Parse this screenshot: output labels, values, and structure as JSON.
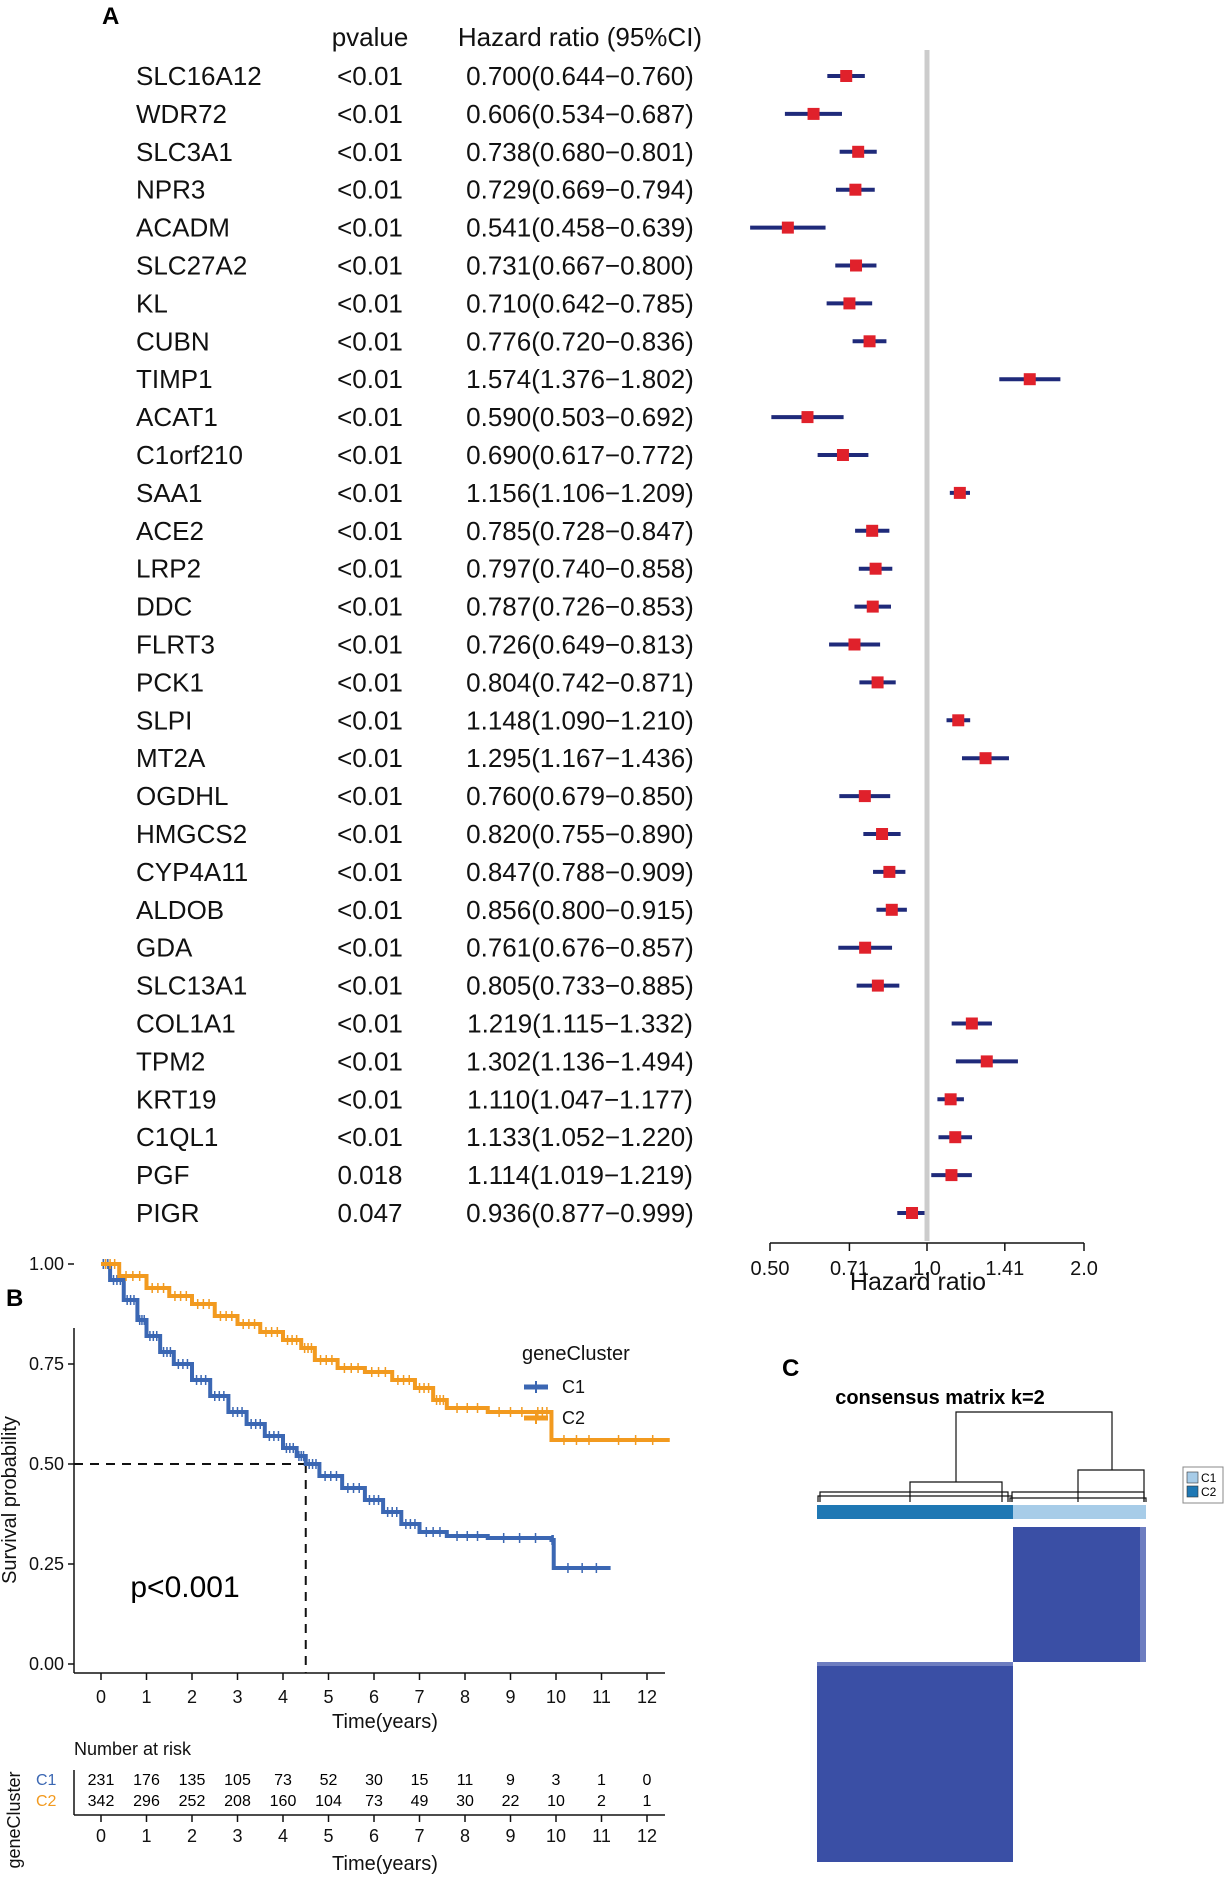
{
  "panels": {
    "a": "A",
    "b": "B",
    "c": "C"
  },
  "colors": {
    "ci_line": "#1f2a7a",
    "point": "#e0212b",
    "ref_line": "#cccccc",
    "c1": "#3b67b3",
    "c2": "#f29a1f",
    "c1_light": "#a7cce8",
    "c2_dark": "#1f78b4",
    "matrix": "#3a4fa5"
  },
  "chart_data": [
    {
      "type": "forest",
      "panel": "A",
      "col_headers": {
        "pvalue": "pvalue",
        "hr": "Hazard ratio (95%CI)"
      },
      "xlabel": "Hazard ratio",
      "xscale": "log",
      "xticks": [
        "0.50",
        "0.71",
        "1.0",
        "1.41",
        "2.0"
      ],
      "xlim": [
        0.5,
        2.0
      ],
      "ref_line": 1.0,
      "rows": [
        {
          "gene": "SLC16A12",
          "p": "<0.01",
          "hr": 0.7,
          "lo": 0.644,
          "hi": 0.76,
          "text": "0.700(0.644−0.760)"
        },
        {
          "gene": "WDR72",
          "p": "<0.01",
          "hr": 0.606,
          "lo": 0.534,
          "hi": 0.687,
          "text": "0.606(0.534−0.687)"
        },
        {
          "gene": "SLC3A1",
          "p": "<0.01",
          "hr": 0.738,
          "lo": 0.68,
          "hi": 0.801,
          "text": "0.738(0.680−0.801)"
        },
        {
          "gene": "NPR3",
          "p": "<0.01",
          "hr": 0.729,
          "lo": 0.669,
          "hi": 0.794,
          "text": "0.729(0.669−0.794)"
        },
        {
          "gene": "ACADM",
          "p": "<0.01",
          "hr": 0.541,
          "lo": 0.458,
          "hi": 0.639,
          "text": "0.541(0.458−0.639)"
        },
        {
          "gene": "SLC27A2",
          "p": "<0.01",
          "hr": 0.731,
          "lo": 0.667,
          "hi": 0.8,
          "text": "0.731(0.667−0.800)"
        },
        {
          "gene": "KL",
          "p": "<0.01",
          "hr": 0.71,
          "lo": 0.642,
          "hi": 0.785,
          "text": "0.710(0.642−0.785)"
        },
        {
          "gene": "CUBN",
          "p": "<0.01",
          "hr": 0.776,
          "lo": 0.72,
          "hi": 0.836,
          "text": "0.776(0.720−0.836)"
        },
        {
          "gene": "TIMP1",
          "p": "<0.01",
          "hr": 1.574,
          "lo": 1.376,
          "hi": 1.802,
          "text": "1.574(1.376−1.802)"
        },
        {
          "gene": "ACAT1",
          "p": "<0.01",
          "hr": 0.59,
          "lo": 0.503,
          "hi": 0.692,
          "text": "0.590(0.503−0.692)"
        },
        {
          "gene": "C1orf210",
          "p": "<0.01",
          "hr": 0.69,
          "lo": 0.617,
          "hi": 0.772,
          "text": "0.690(0.617−0.772)"
        },
        {
          "gene": "SAA1",
          "p": "<0.01",
          "hr": 1.156,
          "lo": 1.106,
          "hi": 1.209,
          "text": "1.156(1.106−1.209)"
        },
        {
          "gene": "ACE2",
          "p": "<0.01",
          "hr": 0.785,
          "lo": 0.728,
          "hi": 0.847,
          "text": "0.785(0.728−0.847)"
        },
        {
          "gene": "LRP2",
          "p": "<0.01",
          "hr": 0.797,
          "lo": 0.74,
          "hi": 0.858,
          "text": "0.797(0.740−0.858)"
        },
        {
          "gene": "DDC",
          "p": "<0.01",
          "hr": 0.787,
          "lo": 0.726,
          "hi": 0.853,
          "text": "0.787(0.726−0.853)"
        },
        {
          "gene": "FLRT3",
          "p": "<0.01",
          "hr": 0.726,
          "lo": 0.649,
          "hi": 0.813,
          "text": "0.726(0.649−0.813)"
        },
        {
          "gene": "PCK1",
          "p": "<0.01",
          "hr": 0.804,
          "lo": 0.742,
          "hi": 0.871,
          "text": "0.804(0.742−0.871)"
        },
        {
          "gene": "SLPI",
          "p": "<0.01",
          "hr": 1.148,
          "lo": 1.09,
          "hi": 1.21,
          "text": "1.148(1.090−1.210)"
        },
        {
          "gene": "MT2A",
          "p": "<0.01",
          "hr": 1.295,
          "lo": 1.167,
          "hi": 1.436,
          "text": "1.295(1.167−1.436)"
        },
        {
          "gene": "OGDHL",
          "p": "<0.01",
          "hr": 0.76,
          "lo": 0.679,
          "hi": 0.85,
          "text": "0.760(0.679−0.850)"
        },
        {
          "gene": "HMGCS2",
          "p": "<0.01",
          "hr": 0.82,
          "lo": 0.755,
          "hi": 0.89,
          "text": "0.820(0.755−0.890)"
        },
        {
          "gene": "CYP4A11",
          "p": "<0.01",
          "hr": 0.847,
          "lo": 0.788,
          "hi": 0.909,
          "text": "0.847(0.788−0.909)"
        },
        {
          "gene": "ALDOB",
          "p": "<0.01",
          "hr": 0.856,
          "lo": 0.8,
          "hi": 0.915,
          "text": "0.856(0.800−0.915)"
        },
        {
          "gene": "GDA",
          "p": "<0.01",
          "hr": 0.761,
          "lo": 0.676,
          "hi": 0.857,
          "text": "0.761(0.676−0.857)"
        },
        {
          "gene": "SLC13A1",
          "p": "<0.01",
          "hr": 0.805,
          "lo": 0.733,
          "hi": 0.885,
          "text": "0.805(0.733−0.885)"
        },
        {
          "gene": "COL1A1",
          "p": "<0.01",
          "hr": 1.219,
          "lo": 1.115,
          "hi": 1.332,
          "text": "1.219(1.115−1.332)"
        },
        {
          "gene": "TPM2",
          "p": "<0.01",
          "hr": 1.302,
          "lo": 1.136,
          "hi": 1.494,
          "text": "1.302(1.136−1.494)"
        },
        {
          "gene": "KRT19",
          "p": "<0.01",
          "hr": 1.11,
          "lo": 1.047,
          "hi": 1.177,
          "text": "1.110(1.047−1.177)"
        },
        {
          "gene": "C1QL1",
          "p": "<0.01",
          "hr": 1.133,
          "lo": 1.052,
          "hi": 1.22,
          "text": "1.133(1.052−1.220)"
        },
        {
          "gene": "PGF",
          "p": "0.018",
          "hr": 1.114,
          "lo": 1.019,
          "hi": 1.219,
          "text": "1.114(1.019−1.219)"
        },
        {
          "gene": "PIGR",
          "p": "0.047",
          "hr": 0.936,
          "lo": 0.877,
          "hi": 0.999,
          "text": "0.936(0.877−0.999)"
        }
      ]
    },
    {
      "type": "line",
      "subtype": "kaplan-meier",
      "panel": "B",
      "ylabel": "Survival probability",
      "xlabel": "Time(years)",
      "yticks": [
        "1.00",
        "0.75",
        "0.50",
        "0.25",
        "0.00"
      ],
      "ytick_values": [
        1.0,
        0.75,
        0.5,
        0.25,
        0.0
      ],
      "xticks": [
        0,
        1,
        2,
        3,
        4,
        5,
        6,
        7,
        8,
        9,
        10,
        11,
        12
      ],
      "xlim": [
        0,
        12.7
      ],
      "ylim": [
        0,
        1.04
      ],
      "median_line": {
        "time": 4.5,
        "prob": 0.5
      },
      "pvalue_text": "p<0.001",
      "legend_title": "geneCluster",
      "series": [
        {
          "name": "C1",
          "color": "#3b67b3",
          "points": [
            [
              0,
              1.0
            ],
            [
              0.2,
              0.96
            ],
            [
              0.5,
              0.91
            ],
            [
              0.8,
              0.86
            ],
            [
              1,
              0.82
            ],
            [
              1.3,
              0.78
            ],
            [
              1.6,
              0.75
            ],
            [
              2,
              0.71
            ],
            [
              2.4,
              0.67
            ],
            [
              2.8,
              0.63
            ],
            [
              3.2,
              0.6
            ],
            [
              3.6,
              0.57
            ],
            [
              4,
              0.54
            ],
            [
              4.3,
              0.52
            ],
            [
              4.5,
              0.5
            ],
            [
              4.8,
              0.47
            ],
            [
              5.3,
              0.44
            ],
            [
              5.8,
              0.41
            ],
            [
              6.2,
              0.38
            ],
            [
              6.6,
              0.35
            ],
            [
              7,
              0.33
            ],
            [
              7.6,
              0.32
            ],
            [
              8.5,
              0.315
            ],
            [
              9.9,
              0.31
            ],
            [
              9.95,
              0.24
            ],
            [
              11.2,
              0.24
            ]
          ]
        },
        {
          "name": "C2",
          "color": "#f29a1f",
          "points": [
            [
              0,
              1.0
            ],
            [
              0.4,
              0.97
            ],
            [
              1,
              0.94
            ],
            [
              1.5,
              0.92
            ],
            [
              2,
              0.9
            ],
            [
              2.5,
              0.87
            ],
            [
              3,
              0.85
            ],
            [
              3.5,
              0.83
            ],
            [
              4,
              0.81
            ],
            [
              4.4,
              0.79
            ],
            [
              4.7,
              0.76
            ],
            [
              5.2,
              0.74
            ],
            [
              5.8,
              0.73
            ],
            [
              6.4,
              0.71
            ],
            [
              6.9,
              0.69
            ],
            [
              7.3,
              0.66
            ],
            [
              7.6,
              0.64
            ],
            [
              8.5,
              0.63
            ],
            [
              9.5,
              0.63
            ],
            [
              9.9,
              0.56
            ],
            [
              11,
              0.56
            ],
            [
              12.5,
              0.56
            ]
          ]
        }
      ],
      "risk_table": {
        "title": "Number at risk",
        "side_label": "geneCluster",
        "rows": [
          {
            "name": "C1",
            "values": [
              "231",
              "176",
              "135",
              "105",
              "73",
              "52",
              "30",
              "15",
              "11",
              "9",
              "3",
              "1",
              "0"
            ]
          },
          {
            "name": "C2",
            "values": [
              "342",
              "296",
              "252",
              "208",
              "160",
              "104",
              "73",
              "49",
              "30",
              "22",
              "10",
              "2",
              "1"
            ]
          }
        ],
        "xlabel": "Time(years)"
      }
    },
    {
      "type": "heatmap",
      "panel": "C",
      "title": "consensus matrix k=2",
      "legend": [
        {
          "name": "C1",
          "color": "#a7cce8"
        },
        {
          "name": "C2",
          "color": "#1f78b4"
        }
      ],
      "clusters": [
        "C2",
        "C1"
      ]
    }
  ]
}
